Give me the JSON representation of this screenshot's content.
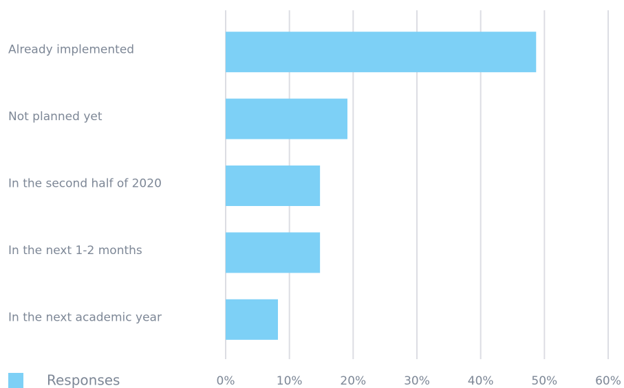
{
  "chart_data": {
    "type": "bar",
    "orientation": "horizontal",
    "categories": [
      "Already implemented",
      "Not planned yet",
      "In the second half of 2020",
      "In the next 1-2 months",
      "In the next academic year"
    ],
    "series": [
      {
        "name": "Responses",
        "color": "#7dd0f6",
        "values": [
          48.7,
          19.1,
          14.8,
          14.8,
          8.2
        ]
      }
    ],
    "xlim": [
      0,
      60
    ],
    "xticks": [
      {
        "value": 0,
        "label": "0%"
      },
      {
        "value": 10,
        "label": "10%"
      },
      {
        "value": 20,
        "label": "20%"
      },
      {
        "value": 30,
        "label": "30%"
      },
      {
        "value": 40,
        "label": "40%"
      },
      {
        "value": 50,
        "label": "50%"
      },
      {
        "value": 60,
        "label": "60%"
      }
    ],
    "grid": true,
    "legend": "bottom-left"
  }
}
